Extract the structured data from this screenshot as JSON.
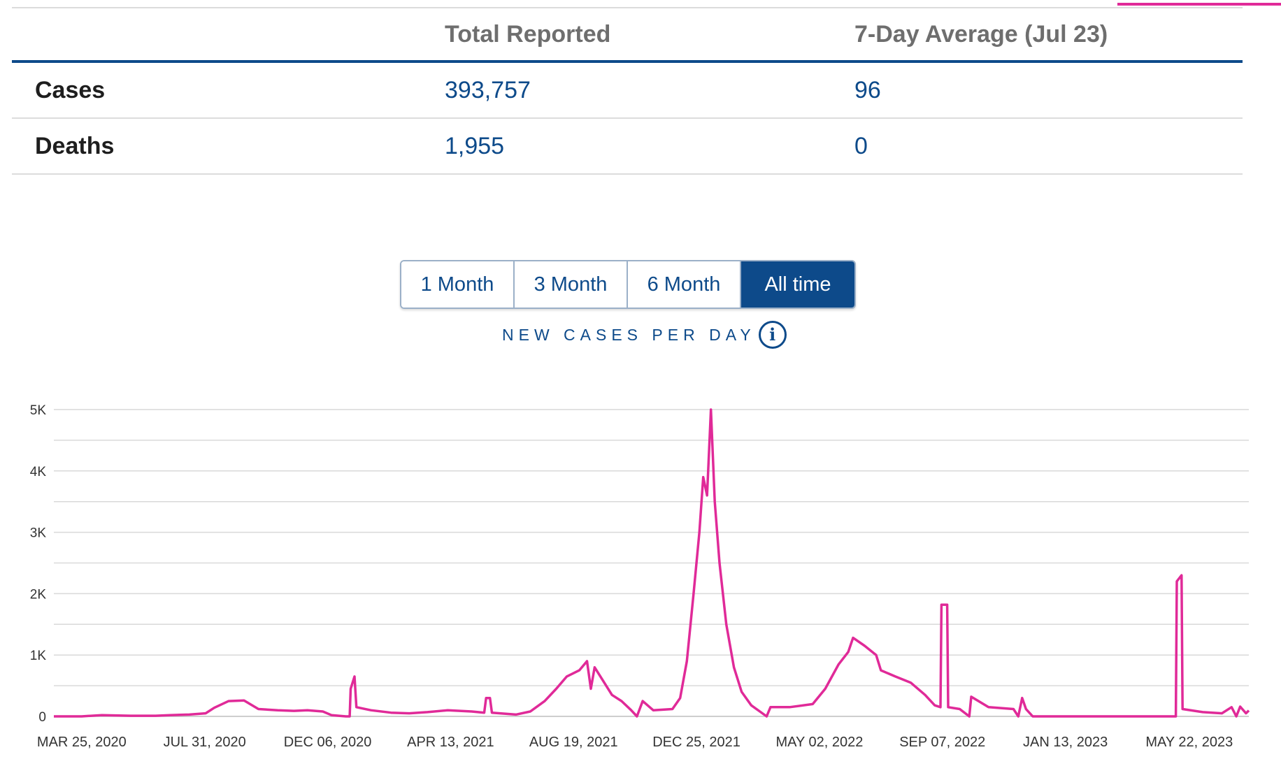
{
  "stats": {
    "headers": {
      "total": "Total Reported",
      "avg": "7-Day Average (Jul 23)"
    },
    "rows": [
      {
        "label": "Cases",
        "total": "393,757",
        "avg": "96"
      },
      {
        "label": "Deaths",
        "total": "1,955",
        "avg": "0"
      }
    ]
  },
  "range_buttons": [
    {
      "label": "1 Month",
      "active": false
    },
    {
      "label": "3 Month",
      "active": false
    },
    {
      "label": "6 Month",
      "active": false
    },
    {
      "label": "All time",
      "active": true
    }
  ],
  "chart_caption": "NEW CASES PER DAY",
  "colors": {
    "accent": "#e02a98",
    "primary": "#0d4a8a",
    "grid": "#d9d9d9"
  },
  "icons": {
    "info": "info-icon"
  },
  "chart_data": {
    "type": "line",
    "title": "",
    "xlabel": "",
    "ylabel": "",
    "x_range": [
      "2020-02-25",
      "2023-07-23"
    ],
    "ylim": [
      0,
      5000
    ],
    "yticks": [
      0,
      1000,
      2000,
      3000,
      4000,
      5000
    ],
    "ytick_labels": [
      "0",
      "1K",
      "2K",
      "3K",
      "4K",
      "5K"
    ],
    "xticks": [
      "2020-03-25",
      "2020-07-31",
      "2020-12-06",
      "2021-04-13",
      "2021-08-19",
      "2021-12-25",
      "2022-05-02",
      "2022-09-07",
      "2023-01-13",
      "2023-05-22"
    ],
    "xtick_labels": [
      "MAR 25, 2020",
      "JUL 31, 2020",
      "DEC 06, 2020",
      "APR 13, 2021",
      "AUG 19, 2021",
      "DEC 25, 2021",
      "MAY 02, 2022",
      "SEP 07, 2022",
      "JAN 13, 2023",
      "MAY 22, 2023"
    ],
    "grid": true,
    "series": [
      {
        "color": "#e02a98",
        "points": [
          [
            "2020-02-25",
            0
          ],
          [
            "2020-03-25",
            0
          ],
          [
            "2020-04-15",
            20
          ],
          [
            "2020-05-15",
            10
          ],
          [
            "2020-06-10",
            10
          ],
          [
            "2020-06-25",
            20
          ],
          [
            "2020-07-15",
            30
          ],
          [
            "2020-08-01",
            50
          ],
          [
            "2020-08-10",
            140
          ],
          [
            "2020-08-25",
            250
          ],
          [
            "2020-09-10",
            260
          ],
          [
            "2020-09-25",
            120
          ],
          [
            "2020-10-15",
            100
          ],
          [
            "2020-11-01",
            90
          ],
          [
            "2020-11-15",
            100
          ],
          [
            "2020-12-01",
            80
          ],
          [
            "2020-12-10",
            20
          ],
          [
            "2020-12-25",
            0
          ],
          [
            "2020-12-29",
            0
          ],
          [
            "2020-12-30",
            450
          ],
          [
            "2021-01-03",
            650
          ],
          [
            "2021-01-05",
            150
          ],
          [
            "2021-01-20",
            100
          ],
          [
            "2021-02-10",
            60
          ],
          [
            "2021-03-01",
            50
          ],
          [
            "2021-03-20",
            70
          ],
          [
            "2021-04-10",
            100
          ],
          [
            "2021-05-05",
            80
          ],
          [
            "2021-05-18",
            60
          ],
          [
            "2021-05-20",
            300
          ],
          [
            "2021-05-24",
            300
          ],
          [
            "2021-05-26",
            60
          ],
          [
            "2021-06-20",
            30
          ],
          [
            "2021-07-05",
            80
          ],
          [
            "2021-07-20",
            250
          ],
          [
            "2021-08-01",
            450
          ],
          [
            "2021-08-12",
            650
          ],
          [
            "2021-08-25",
            750
          ],
          [
            "2021-09-02",
            900
          ],
          [
            "2021-09-06",
            450
          ],
          [
            "2021-09-10",
            800
          ],
          [
            "2021-09-18",
            600
          ],
          [
            "2021-09-28",
            350
          ],
          [
            "2021-10-08",
            250
          ],
          [
            "2021-10-18",
            100
          ],
          [
            "2021-10-24",
            0
          ],
          [
            "2021-10-30",
            250
          ],
          [
            "2021-11-10",
            100
          ],
          [
            "2021-11-30",
            120
          ],
          [
            "2021-12-08",
            300
          ],
          [
            "2021-12-15",
            900
          ],
          [
            "2021-12-22",
            2000
          ],
          [
            "2021-12-28",
            3000
          ],
          [
            "2022-01-01",
            3900
          ],
          [
            "2022-01-05",
            3600
          ],
          [
            "2022-01-09",
            5000
          ],
          [
            "2022-01-13",
            3500
          ],
          [
            "2022-01-18",
            2500
          ],
          [
            "2022-01-25",
            1500
          ],
          [
            "2022-02-02",
            800
          ],
          [
            "2022-02-10",
            400
          ],
          [
            "2022-02-20",
            180
          ],
          [
            "2022-03-01",
            80
          ],
          [
            "2022-03-08",
            0
          ],
          [
            "2022-03-12",
            150
          ],
          [
            "2022-04-01",
            150
          ],
          [
            "2022-04-25",
            200
          ],
          [
            "2022-05-08",
            450
          ],
          [
            "2022-05-22",
            850
          ],
          [
            "2022-06-01",
            1050
          ],
          [
            "2022-06-06",
            1280
          ],
          [
            "2022-06-18",
            1150
          ],
          [
            "2022-06-30",
            1000
          ],
          [
            "2022-07-05",
            750
          ],
          [
            "2022-07-20",
            650
          ],
          [
            "2022-08-05",
            550
          ],
          [
            "2022-08-20",
            350
          ],
          [
            "2022-08-30",
            180
          ],
          [
            "2022-09-05",
            150
          ],
          [
            "2022-09-06",
            1820
          ],
          [
            "2022-09-12",
            1820
          ],
          [
            "2022-09-13",
            150
          ],
          [
            "2022-09-25",
            120
          ],
          [
            "2022-10-05",
            0
          ],
          [
            "2022-10-07",
            320
          ],
          [
            "2022-10-25",
            150
          ],
          [
            "2022-11-20",
            120
          ],
          [
            "2022-11-25",
            0
          ],
          [
            "2022-11-29",
            300
          ],
          [
            "2022-12-03",
            120
          ],
          [
            "2022-12-10",
            0
          ],
          [
            "2022-12-15",
            0
          ],
          [
            "2023-02-15",
            0
          ],
          [
            "2023-04-20",
            0
          ],
          [
            "2023-05-08",
            0
          ],
          [
            "2023-05-09",
            2200
          ],
          [
            "2023-05-14",
            2300
          ],
          [
            "2023-05-15",
            120
          ],
          [
            "2023-06-05",
            70
          ],
          [
            "2023-06-25",
            50
          ],
          [
            "2023-07-05",
            150
          ],
          [
            "2023-07-10",
            0
          ],
          [
            "2023-07-14",
            160
          ],
          [
            "2023-07-20",
            50
          ],
          [
            "2023-07-23",
            96
          ]
        ]
      }
    ]
  }
}
